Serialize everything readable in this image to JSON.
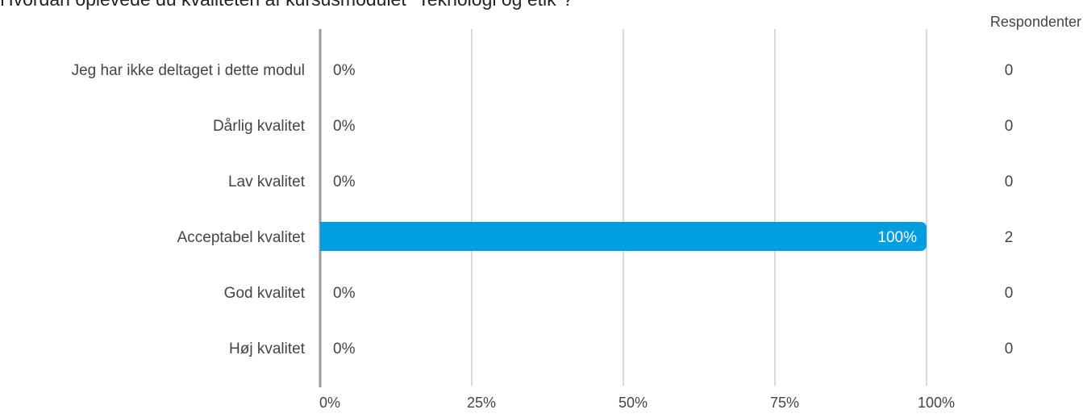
{
  "title": "Hvordan oplevede du kvaliteten af kursusmodulet \"Teknologi og etik\"?",
  "respondents_header": "Respondenter",
  "colors": {
    "bar": "#009ee0",
    "grid": "#b3b3b3",
    "axis": "#999999",
    "text": "#444444"
  },
  "chart_data": {
    "type": "bar",
    "orientation": "horizontal",
    "categories": [
      "Jeg har ikke deltaget i dette modul",
      "Dårlig kvalitet",
      "Lav kvalitet",
      "Acceptabel kvalitet",
      "God kvalitet",
      "Høj kvalitet"
    ],
    "values": [
      0,
      0,
      0,
      100,
      0,
      0
    ],
    "value_labels": [
      "0%",
      "0%",
      "0%",
      "100%",
      "0%",
      "0%"
    ],
    "respondents": [
      0,
      0,
      0,
      2,
      0,
      0
    ],
    "xlim": [
      0,
      100
    ],
    "xticks": [
      0,
      25,
      50,
      75,
      100
    ],
    "xtick_labels": [
      "0%",
      "25%",
      "50%",
      "75%",
      "100%"
    ],
    "grid": true
  }
}
